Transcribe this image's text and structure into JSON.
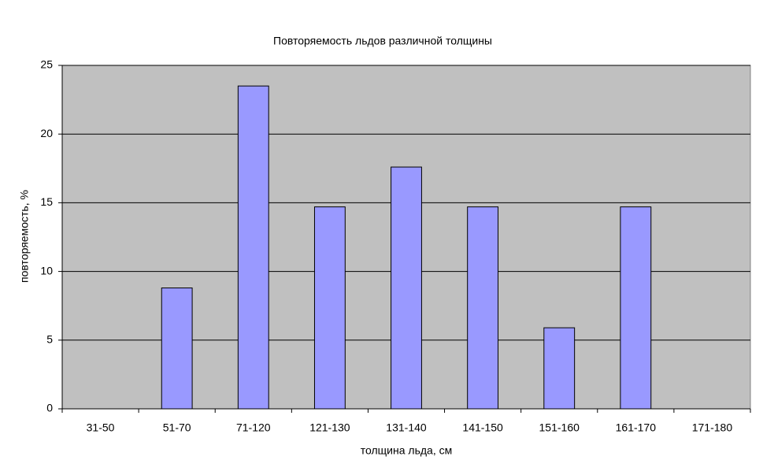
{
  "chart_data": {
    "type": "bar",
    "title": "Повторяемость льдов различной толщины",
    "x_label": "толщина льда, см",
    "y_label": "повторяемость, %",
    "categories": [
      "31-50",
      "51-70",
      "71-120",
      "121-130",
      "131-140",
      "141-150",
      "151-160",
      "161-170",
      "171-180"
    ],
    "values": [
      0,
      8.8,
      23.5,
      14.7,
      17.6,
      14.7,
      5.9,
      14.7,
      0
    ],
    "color": "#9999ff",
    "ylim": [
      0,
      25
    ],
    "yticks": [
      0,
      5,
      10,
      15,
      20,
      25
    ],
    "grid": true
  }
}
